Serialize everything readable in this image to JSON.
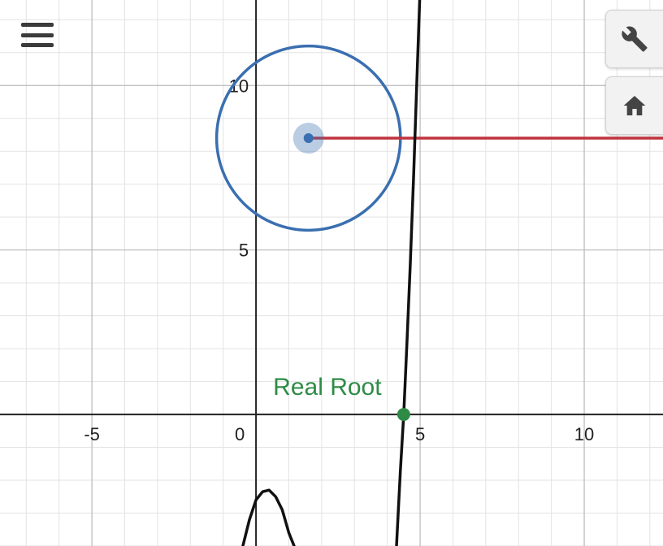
{
  "graph": {
    "x_ticks": [
      {
        "value": -5,
        "label": "-5"
      },
      {
        "value": 0,
        "label": "0"
      },
      {
        "value": 5,
        "label": "5"
      },
      {
        "value": 10,
        "label": "10"
      }
    ],
    "y_ticks": [
      {
        "value": 5,
        "label": "5"
      },
      {
        "value": 10,
        "label": "10"
      }
    ],
    "x_range": [
      -7.8,
      12.4
    ],
    "y_range": [
      -4,
      12.6
    ],
    "curve_color": "#111111",
    "circle_color": "#3a6fb0",
    "ray_color": "#c0343f",
    "root_color": "#2e8b46",
    "circle": {
      "center": [
        1.6,
        8.4
      ],
      "radius": 2.8
    },
    "ray": {
      "from": [
        1.6,
        8.4
      ],
      "direction": "positive-x"
    },
    "root_point": {
      "x": 4.5,
      "y": 0,
      "label": "Real Root"
    },
    "curve_samples": [
      [
        -0.4,
        -4.0
      ],
      [
        -0.2,
        -3.2
      ],
      [
        0.0,
        -2.6
      ],
      [
        0.2,
        -2.35
      ],
      [
        0.4,
        -2.3
      ],
      [
        0.6,
        -2.5
      ],
      [
        0.8,
        -2.9
      ],
      [
        1.0,
        -3.6
      ],
      [
        1.2,
        -4.1
      ]
    ],
    "curve_right": [
      [
        4.28,
        -4.0
      ],
      [
        4.4,
        -1.7
      ],
      [
        4.5,
        0.0
      ],
      [
        4.6,
        2.2
      ],
      [
        4.7,
        4.6
      ],
      [
        4.8,
        7.2
      ],
      [
        4.9,
        10.1
      ],
      [
        5.0,
        13.0
      ]
    ]
  },
  "toolbar": {
    "menu_icon": "hamburger-menu-icon",
    "settings_icon": "wrench-icon",
    "home_icon": "home-icon"
  }
}
